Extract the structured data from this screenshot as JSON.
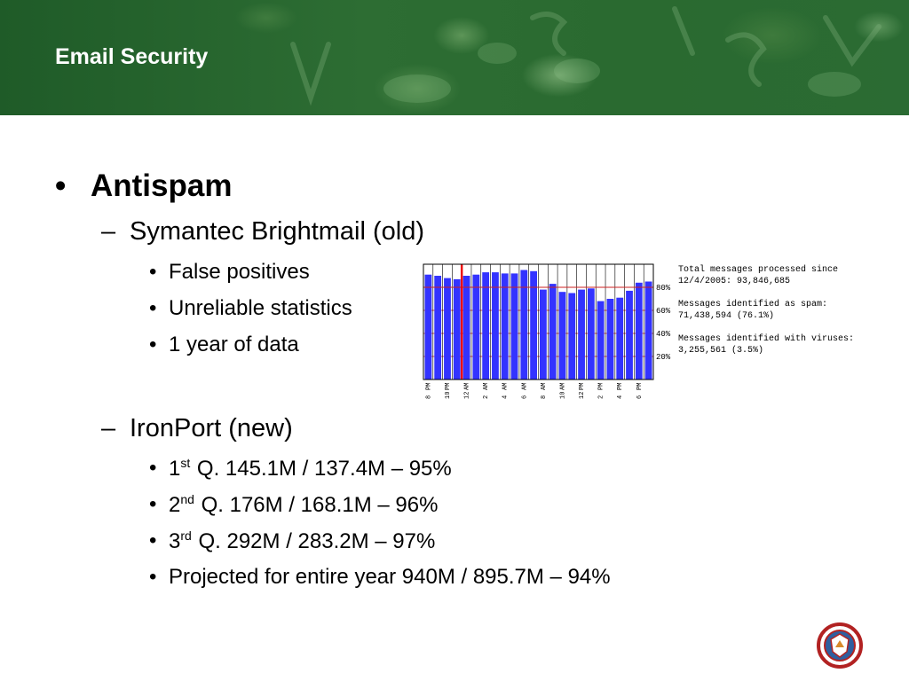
{
  "slide": {
    "title": "Email Security"
  },
  "bullets": {
    "l1": {
      "mark": "•",
      "text": "Antispam"
    },
    "symantec": {
      "mark": "–",
      "text": "Symantec Brightmail (old)"
    },
    "symantec_items": [
      {
        "mark": "•",
        "text": "False positives"
      },
      {
        "mark": "•",
        "text": "Unreliable statistics"
      },
      {
        "mark": "•",
        "text": "1 year of data"
      }
    ],
    "ironport": {
      "mark": "–",
      "text": "IronPort (new)"
    },
    "ironport_items": [
      {
        "mark": "•",
        "num": "1",
        "sup": "st",
        "text": " Q. 145.1M / 137.4M – 95%"
      },
      {
        "mark": "•",
        "num": "2",
        "sup": "nd",
        "text": " Q. 176M / 168.1M – 96%"
      },
      {
        "mark": "•",
        "num": "3",
        "sup": "rd",
        "text": " Q. 292M / 283.2M – 97%"
      },
      {
        "mark": "•",
        "num": "",
        "sup": "",
        "text": "Projected for entire year 940M / 895.7M – 94%"
      }
    ]
  },
  "chart_info": {
    "lines": [
      "Total messages processed since 12/4/2005: 93,846,685",
      "Messages identified as spam: 71,438,594 (76.1%)",
      "Messages identified with viruses: 3,255,561 (3.5%)"
    ]
  },
  "chart_data": {
    "type": "bar",
    "title": "",
    "xlabel": "",
    "ylabel": "",
    "ylim": [
      0,
      100
    ],
    "y_ticks": [
      "20%",
      "40%",
      "60%",
      "80%"
    ],
    "x_tick_labels": [
      "8 PM",
      "10 PM",
      "12 AM",
      "2 AM",
      "4 AM",
      "6 AM",
      "8 AM",
      "10 AM",
      "12 PM",
      "2 PM",
      "4 PM",
      "6 PM"
    ],
    "values": [
      91,
      90,
      88,
      87,
      90,
      91,
      93,
      93,
      92,
      92,
      95,
      94,
      78,
      83,
      76,
      75,
      78,
      79,
      68,
      70,
      71,
      77,
      84,
      85
    ],
    "reference_line": 80,
    "marker_index": 4,
    "colors": {
      "bar": "#3333ff",
      "marker": "#ee0000",
      "grid": "#cc2222",
      "frame": "#000000"
    }
  },
  "colors": {
    "banner": "#2b6b33",
    "title": "#ffffff",
    "seal_red": "#b22222"
  }
}
